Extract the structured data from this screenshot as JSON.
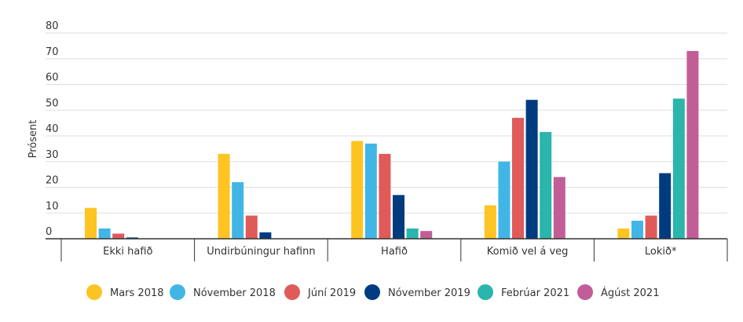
{
  "chart_data": {
    "type": "bar",
    "title": "",
    "xlabel": "",
    "ylabel": "Prósent",
    "ylim": [
      0,
      80
    ],
    "yticks": [
      0,
      10,
      20,
      30,
      40,
      50,
      60,
      70,
      80
    ],
    "grid": true,
    "legend_position": "bottom",
    "categories": [
      "Ekki hafið",
      "Undirbúningur hafinn",
      "Hafið",
      "Komið vel á veg",
      "Lokið*"
    ],
    "series": [
      {
        "name": "Mars 2018",
        "color": "#FDC422",
        "values": [
          12,
          33,
          38,
          13,
          4
        ]
      },
      {
        "name": "Nóvember 2018",
        "color": "#41B6E6",
        "values": [
          4,
          22,
          37,
          30,
          7
        ]
      },
      {
        "name": "Júní 2019",
        "color": "#E05A5A",
        "values": [
          2,
          9,
          33,
          47,
          9
        ]
      },
      {
        "name": "Nóvember 2019",
        "color": "#003B80",
        "values": [
          0.5,
          2.5,
          17,
          54,
          25.5
        ]
      },
      {
        "name": "Febrúar 2021",
        "color": "#2BB5AC",
        "values": [
          0,
          0,
          4,
          41.5,
          54.5
        ]
      },
      {
        "name": "Ágúst 2021",
        "color": "#C25D97",
        "values": [
          0,
          0,
          3,
          24,
          73
        ]
      }
    ]
  }
}
